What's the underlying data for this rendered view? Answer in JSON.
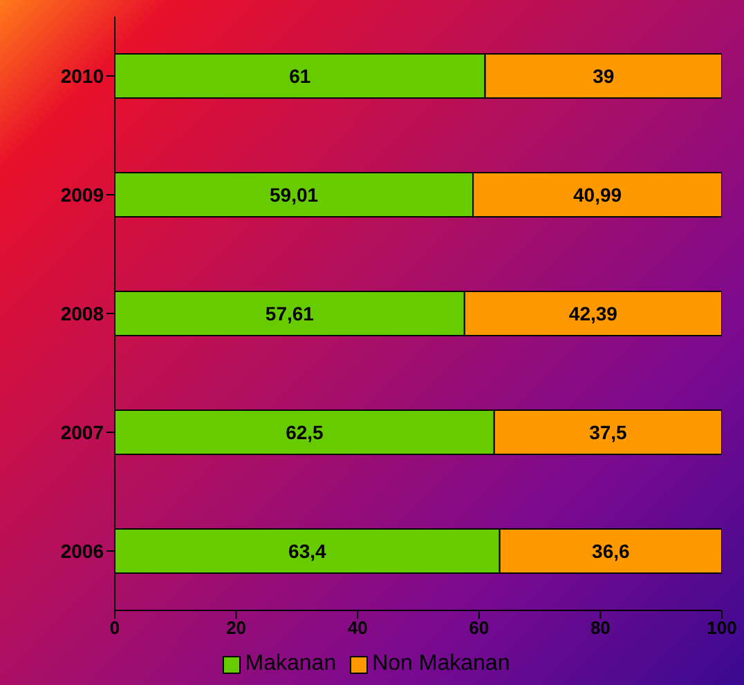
{
  "chart_data": {
    "type": "bar",
    "orientation": "horizontal",
    "stacked": true,
    "categories": [
      "2010",
      "2009",
      "2008",
      "2007",
      "2006"
    ],
    "series": [
      {
        "name": "Makanan",
        "color": "#66cc00",
        "values": [
          61,
          59.01,
          57.61,
          62.5,
          63.4
        ],
        "value_labels": [
          "61",
          "59,01",
          "57,61",
          "62,5",
          "63,4"
        ]
      },
      {
        "name": "Non Makanan",
        "color": "#ff9900",
        "values": [
          39,
          40.99,
          42.39,
          37.5,
          36.6
        ],
        "value_labels": [
          "39",
          "40,99",
          "42,39",
          "37,5",
          "36,6"
        ]
      }
    ],
    "xlim": [
      0,
      100
    ],
    "xticks": [
      0,
      20,
      40,
      60,
      80,
      100
    ],
    "grid": false,
    "legend": "bottom"
  }
}
